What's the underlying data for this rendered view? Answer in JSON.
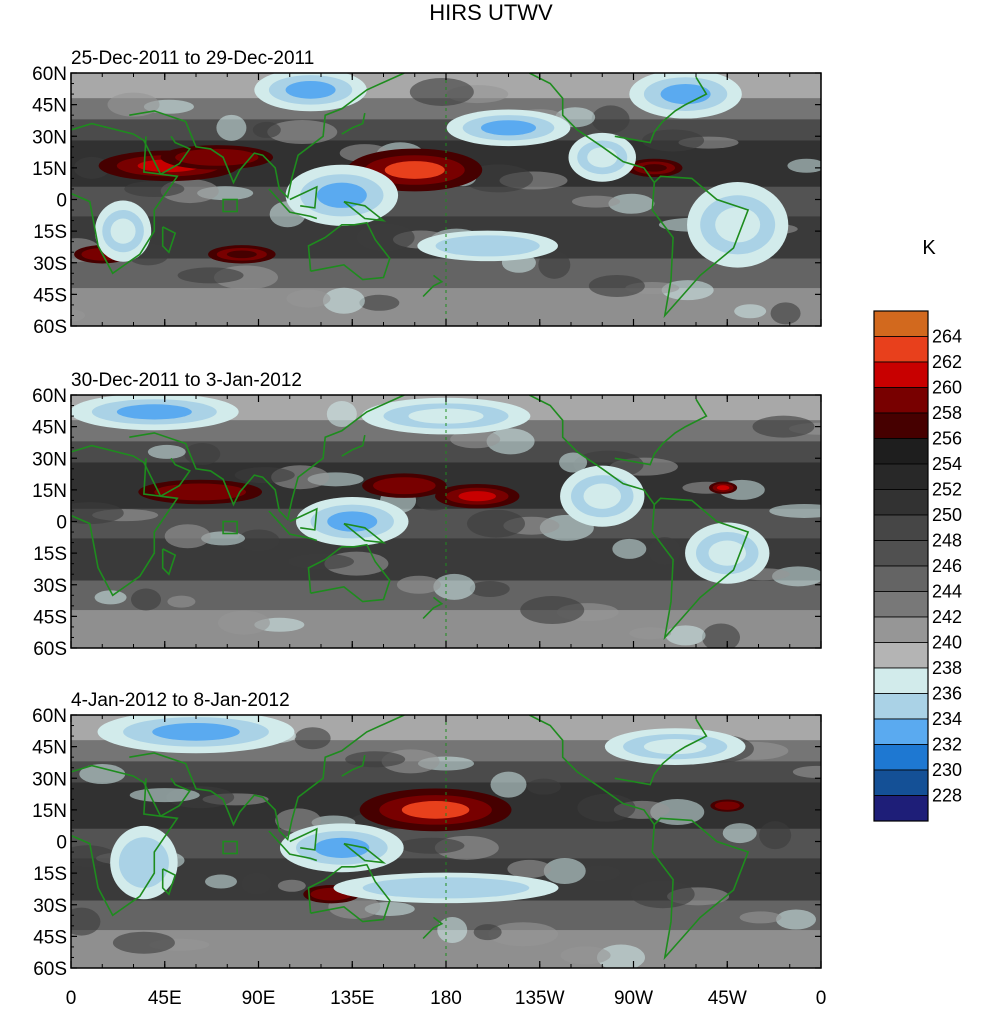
{
  "chart_data": {
    "type": "heatmap",
    "title": "HIRS UTWV",
    "units_label": "K",
    "x_ticks": [
      "0",
      "45E",
      "90E",
      "135E",
      "180",
      "135W",
      "90W",
      "45W",
      "0"
    ],
    "y_ticks": [
      "60N",
      "45N",
      "30N",
      "15N",
      "0",
      "15S",
      "30S",
      "45S",
      "60S"
    ],
    "xlim": [
      0,
      360
    ],
    "ylim": [
      -60,
      60
    ],
    "colorbar": {
      "levels": [
        "264",
        "262",
        "260",
        "258",
        "256",
        "254",
        "252",
        "250",
        "248",
        "246",
        "244",
        "242",
        "240",
        "238",
        "236",
        "234",
        "232",
        "230",
        "228"
      ],
      "colors": [
        "#d2691e",
        "#e8401c",
        "#c80000",
        "#780000",
        "#460000",
        "#1e1e1e",
        "#282828",
        "#323232",
        "#464646",
        "#505050",
        "#646464",
        "#787878",
        "#969696",
        "#b4b4b4",
        "#d2ebeb",
        "#aad2e6",
        "#5aaaf0",
        "#1e78d2",
        "#145096",
        "#1e1e78"
      ]
    },
    "panels": [
      {
        "subtitle": "25-Dec-2011 to 29-Dec-2011",
        "features": [
          {
            "kind": "hot",
            "lon": 47,
            "lat": 16,
            "rlon": 25,
            "rlat": 5,
            "value": 260
          },
          {
            "kind": "hot",
            "lon": 70,
            "lat": 20,
            "rlon": 20,
            "rlat": 4,
            "value": 258
          },
          {
            "kind": "hot",
            "lon": 165,
            "lat": 14,
            "rlon": 24,
            "rlat": 7,
            "value": 262
          },
          {
            "kind": "hot",
            "lon": 280,
            "lat": 15,
            "rlon": 10,
            "rlat": 3,
            "value": 256
          },
          {
            "kind": "hot",
            "lon": 15,
            "lat": -26,
            "rlon": 10,
            "rlat": 3,
            "value": 258
          },
          {
            "kind": "hot",
            "lon": 82,
            "lat": -26,
            "rlon": 12,
            "rlat": 3,
            "value": 256
          },
          {
            "kind": "cold",
            "lon": 130,
            "lat": 2,
            "rlon": 20,
            "rlat": 10,
            "value": 232
          },
          {
            "kind": "cold",
            "lon": 210,
            "lat": 34,
            "rlon": 22,
            "rlat": 6,
            "value": 232
          },
          {
            "kind": "cold",
            "lon": 200,
            "lat": -22,
            "rlon": 25,
            "rlat": 5,
            "value": 234
          },
          {
            "kind": "cold",
            "lon": 255,
            "lat": 20,
            "rlon": 12,
            "rlat": 8,
            "value": 236
          },
          {
            "kind": "cold",
            "lon": 320,
            "lat": -12,
            "rlon": 18,
            "rlat": 14,
            "value": 236
          },
          {
            "kind": "cold",
            "lon": 115,
            "lat": 52,
            "rlon": 20,
            "rlat": 7,
            "value": 232
          },
          {
            "kind": "cold",
            "lon": 295,
            "lat": 50,
            "rlon": 20,
            "rlat": 8,
            "value": 232
          },
          {
            "kind": "cold",
            "lon": 25,
            "lat": -15,
            "rlon": 10,
            "rlat": 10,
            "value": 236
          }
        ]
      },
      {
        "subtitle": "30-Dec-2011 to 3-Jan-2012",
        "features": [
          {
            "kind": "hot",
            "lon": 160,
            "lat": 17,
            "rlon": 15,
            "rlat": 4,
            "value": 258
          },
          {
            "kind": "hot",
            "lon": 195,
            "lat": 12,
            "rlon": 15,
            "rlat": 4,
            "value": 260
          },
          {
            "kind": "hot",
            "lon": 62,
            "lat": 14,
            "rlon": 22,
            "rlat": 4,
            "value": 258
          },
          {
            "kind": "hot",
            "lon": 313,
            "lat": 16,
            "rlon": 5,
            "rlat": 2,
            "value": 260
          },
          {
            "kind": "cold",
            "lon": 135,
            "lat": 0,
            "rlon": 20,
            "rlat": 8,
            "value": 232
          },
          {
            "kind": "cold",
            "lon": 255,
            "lat": 12,
            "rlon": 15,
            "rlat": 10,
            "value": 236
          },
          {
            "kind": "cold",
            "lon": 315,
            "lat": -15,
            "rlon": 15,
            "rlat": 10,
            "value": 236
          },
          {
            "kind": "cold",
            "lon": 40,
            "lat": 52,
            "rlon": 30,
            "rlat": 6,
            "value": 232
          },
          {
            "kind": "cold",
            "lon": 180,
            "lat": 50,
            "rlon": 30,
            "rlat": 6,
            "value": 236
          }
        ]
      },
      {
        "subtitle": "4-Jan-2012 to 8-Jan-2012",
        "features": [
          {
            "kind": "hot",
            "lon": 175,
            "lat": 15,
            "rlon": 27,
            "rlat": 7,
            "value": 262
          },
          {
            "kind": "hot",
            "lon": 125,
            "lat": -25,
            "rlon": 10,
            "rlat": 3,
            "value": 258
          },
          {
            "kind": "hot",
            "lon": 315,
            "lat": 17,
            "rlon": 6,
            "rlat": 2,
            "value": 258
          },
          {
            "kind": "cold",
            "lon": 130,
            "lat": -3,
            "rlon": 22,
            "rlat": 8,
            "value": 232
          },
          {
            "kind": "cold",
            "lon": 35,
            "lat": -10,
            "rlon": 12,
            "rlat": 12,
            "value": 234
          },
          {
            "kind": "cold",
            "lon": 180,
            "lat": -22,
            "rlon": 40,
            "rlat": 5,
            "value": 234
          },
          {
            "kind": "cold",
            "lon": 60,
            "lat": 52,
            "rlon": 35,
            "rlat": 7,
            "value": 232
          },
          {
            "kind": "cold",
            "lon": 290,
            "lat": 45,
            "rlon": 25,
            "rlat": 6,
            "value": 236
          }
        ]
      }
    ]
  }
}
